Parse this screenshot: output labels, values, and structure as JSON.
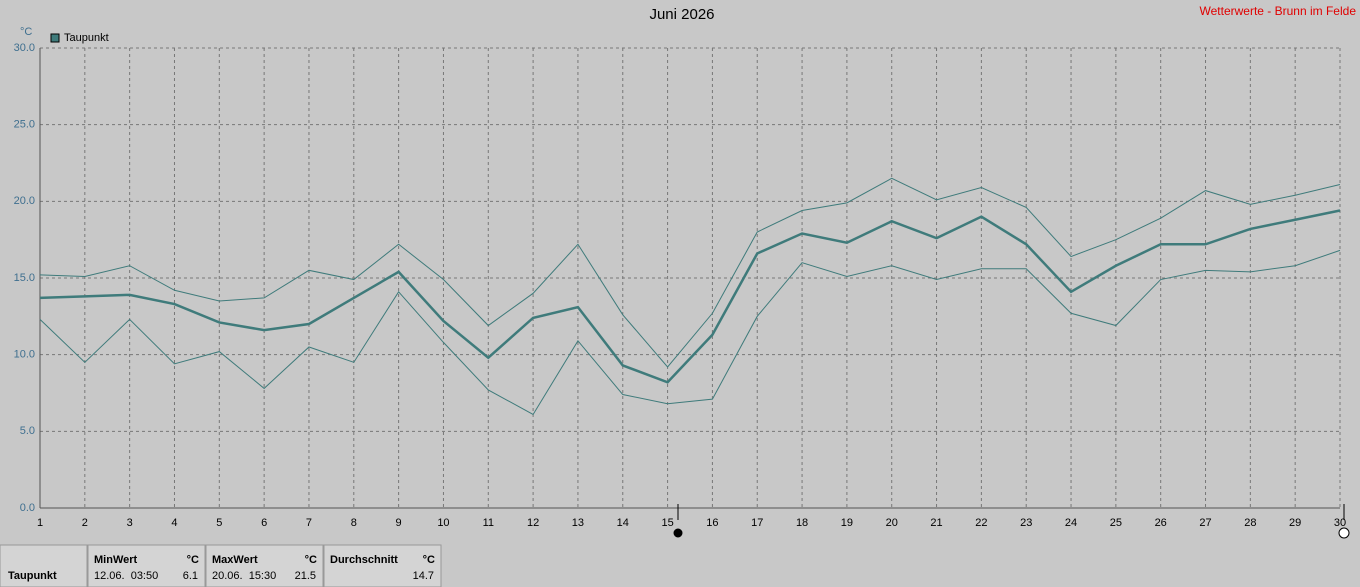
{
  "chart_data": {
    "type": "line",
    "title": "Juni 2026",
    "subtitle": "Wetterwerte - Brunn im Felde",
    "y_unit": "°C",
    "legend": "top-left",
    "grid": true,
    "x": [
      1,
      2,
      3,
      4,
      5,
      6,
      7,
      8,
      9,
      10,
      11,
      12,
      13,
      14,
      15,
      16,
      17,
      18,
      19,
      20,
      21,
      22,
      23,
      24,
      25,
      26,
      27,
      28,
      29,
      30
    ],
    "xlim": [
      1,
      30
    ],
    "xticks": [
      1,
      2,
      3,
      4,
      5,
      6,
      7,
      8,
      9,
      10,
      11,
      12,
      13,
      14,
      15,
      16,
      17,
      18,
      19,
      20,
      21,
      22,
      23,
      24,
      25,
      26,
      27,
      28,
      29,
      30
    ],
    "ylim": [
      0,
      30
    ],
    "yticks": [
      {
        "value": 0,
        "label": "0.0"
      },
      {
        "value": 5,
        "label": "5.0"
      },
      {
        "value": 10,
        "label": "10.0"
      },
      {
        "value": 15,
        "label": "15.0"
      },
      {
        "value": 20,
        "label": "20.0"
      },
      {
        "value": 25,
        "label": "25.0"
      },
      {
        "value": 30,
        "label": "30.0"
      }
    ],
    "series": [
      {
        "name": "Taupunkt",
        "color": "#3f7b7b",
        "width": 2.5,
        "values": [
          13.7,
          13.8,
          13.9,
          13.3,
          12.1,
          11.6,
          12.0,
          13.7,
          15.4,
          12.2,
          9.8,
          12.4,
          13.1,
          9.3,
          8.2,
          11.3,
          16.6,
          17.9,
          17.3,
          18.7,
          17.6,
          19.0,
          17.2,
          14.1,
          15.8,
          17.2,
          17.2,
          18.2,
          18.8,
          19.4
        ]
      },
      {
        "color": "#3f7b7b",
        "width": 1,
        "values": [
          15.2,
          15.1,
          15.8,
          14.2,
          13.5,
          13.7,
          15.5,
          14.9,
          17.2,
          14.9,
          11.9,
          14.0,
          17.2,
          12.6,
          9.2,
          12.7,
          18.0,
          19.4,
          19.9,
          21.5,
          20.1,
          20.9,
          19.6,
          16.4,
          17.5,
          18.9,
          20.7,
          19.8,
          20.4,
          21.1
        ]
      },
      {
        "color": "#3f7b7b",
        "width": 1,
        "values": [
          12.3,
          9.5,
          12.3,
          9.4,
          10.2,
          7.8,
          10.5,
          9.5,
          14.1,
          10.8,
          7.7,
          6.1,
          10.9,
          7.4,
          6.8,
          7.1,
          12.5,
          16.0,
          15.1,
          15.8,
          14.9,
          15.6,
          15.6,
          12.7,
          11.9,
          14.9,
          15.5,
          15.4,
          15.8,
          16.8
        ]
      }
    ]
  },
  "table": {
    "row_label": "Taupunkt",
    "cells": [
      {
        "header": "MinWert",
        "unit": "°C",
        "when": "12.06.  03:50",
        "value": 6.1
      },
      {
        "header": "MaxWert",
        "unit": "°C",
        "when": "20.06.  15:30",
        "value": 21.5
      },
      {
        "header": "Durchschnitt",
        "unit": "°C",
        "value": 14.7
      }
    ]
  }
}
